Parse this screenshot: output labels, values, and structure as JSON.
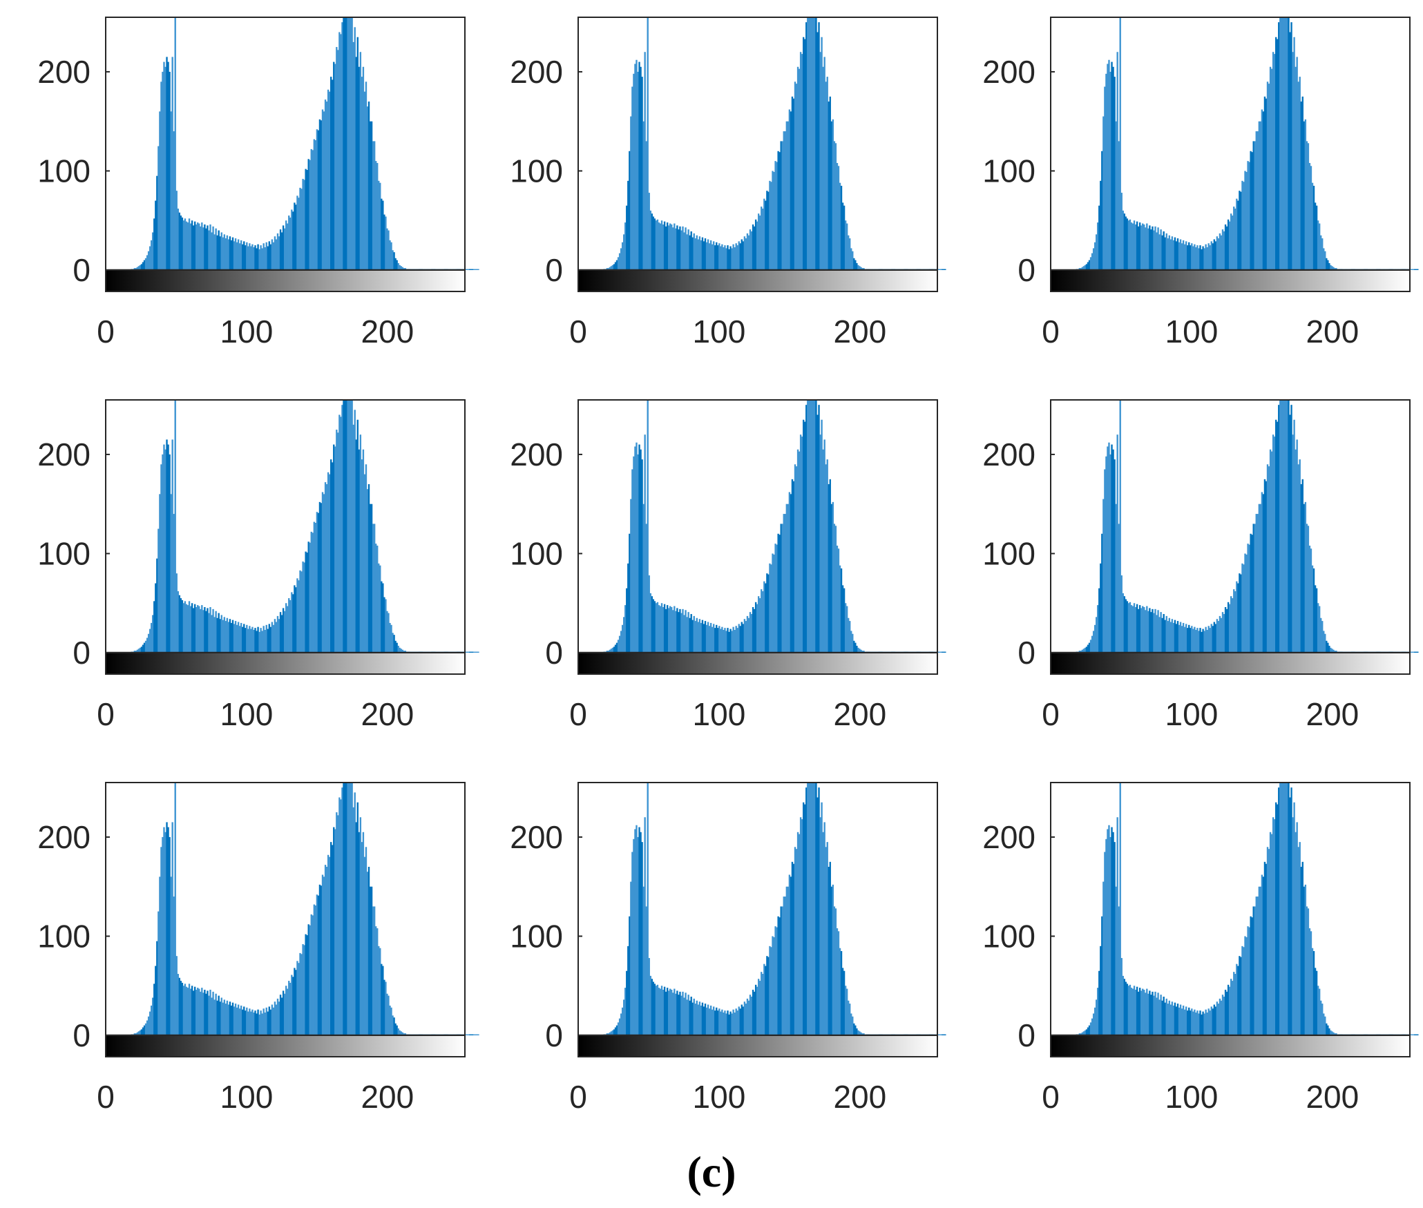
{
  "figure": {
    "caption": "(c)",
    "layout": {
      "rows": 3,
      "cols": 3
    }
  },
  "colors": {
    "bar_light": "#3d94d2",
    "bar_dark": "#0072bd",
    "axis": "#262626",
    "colorbar_start": "#000000",
    "colorbar_end": "#ffffff"
  },
  "chart_data": [
    {
      "id": 1,
      "type": "bar",
      "subtype": "histogram",
      "variant": "A",
      "title": "",
      "xlabel": "",
      "ylabel": "",
      "xlim": [
        0,
        255
      ],
      "ylim": [
        0,
        255
      ],
      "xticks": [
        0,
        100,
        200
      ],
      "xtick_labels": [
        "0",
        "100",
        "200"
      ],
      "yticks": [
        0,
        100,
        200
      ],
      "ytick_labels": [
        "0",
        "100",
        "200"
      ],
      "grid": false,
      "colorbar": "gray",
      "peaks": [
        {
          "bin": 50,
          "value": 255
        },
        {
          "bin": 172,
          "value": 255
        }
      ]
    },
    {
      "id": 2,
      "type": "bar",
      "subtype": "histogram",
      "variant": "B",
      "title": "",
      "xlabel": "",
      "ylabel": "",
      "xlim": [
        0,
        255
      ],
      "ylim": [
        0,
        255
      ],
      "xticks": [
        0,
        100,
        200
      ],
      "xtick_labels": [
        "0",
        "100",
        "200"
      ],
      "yticks": [
        0,
        100,
        200
      ],
      "ytick_labels": [
        "0",
        "100",
        "200"
      ],
      "grid": false,
      "colorbar": "gray",
      "peaks": [
        {
          "bin": 50,
          "value": 255
        },
        {
          "bin": 170,
          "value": 255
        }
      ]
    },
    {
      "id": 3,
      "type": "bar",
      "subtype": "histogram",
      "variant": "B",
      "title": "",
      "xlabel": "",
      "ylabel": "",
      "xlim": [
        0,
        255
      ],
      "ylim": [
        0,
        255
      ],
      "xticks": [
        0,
        100,
        200
      ],
      "xtick_labels": [
        "0",
        "100",
        "200"
      ],
      "yticks": [
        0,
        100,
        200
      ],
      "ytick_labels": [
        "0",
        "100",
        "200"
      ],
      "grid": false,
      "colorbar": "gray",
      "peaks": [
        {
          "bin": 50,
          "value": 255
        },
        {
          "bin": 170,
          "value": 255
        }
      ]
    },
    {
      "id": 4,
      "type": "bar",
      "subtype": "histogram",
      "variant": "A",
      "title": "",
      "xlabel": "",
      "ylabel": "",
      "xlim": [
        0,
        255
      ],
      "ylim": [
        0,
        255
      ],
      "xticks": [
        0,
        100,
        200
      ],
      "xtick_labels": [
        "0",
        "100",
        "200"
      ],
      "yticks": [
        0,
        100,
        200
      ],
      "ytick_labels": [
        "0",
        "100",
        "200"
      ],
      "grid": false,
      "colorbar": "gray",
      "peaks": [
        {
          "bin": 50,
          "value": 255
        },
        {
          "bin": 172,
          "value": 255
        }
      ]
    },
    {
      "id": 5,
      "type": "bar",
      "subtype": "histogram",
      "variant": "B",
      "title": "",
      "xlabel": "",
      "ylabel": "",
      "xlim": [
        0,
        255
      ],
      "ylim": [
        0,
        255
      ],
      "xticks": [
        0,
        100,
        200
      ],
      "xtick_labels": [
        "0",
        "100",
        "200"
      ],
      "yticks": [
        0,
        100,
        200
      ],
      "ytick_labels": [
        "0",
        "100",
        "200"
      ],
      "grid": false,
      "colorbar": "gray",
      "peaks": [
        {
          "bin": 50,
          "value": 255
        },
        {
          "bin": 170,
          "value": 255
        }
      ]
    },
    {
      "id": 6,
      "type": "bar",
      "subtype": "histogram",
      "variant": "B",
      "title": "",
      "xlabel": "",
      "ylabel": "",
      "xlim": [
        0,
        255
      ],
      "ylim": [
        0,
        255
      ],
      "xticks": [
        0,
        100,
        200
      ],
      "xtick_labels": [
        "0",
        "100",
        "200"
      ],
      "yticks": [
        0,
        100,
        200
      ],
      "ytick_labels": [
        "0",
        "100",
        "200"
      ],
      "grid": false,
      "colorbar": "gray",
      "peaks": [
        {
          "bin": 50,
          "value": 255
        },
        {
          "bin": 170,
          "value": 255
        }
      ]
    },
    {
      "id": 7,
      "type": "bar",
      "subtype": "histogram",
      "variant": "A",
      "title": "",
      "xlabel": "",
      "ylabel": "",
      "xlim": [
        0,
        255
      ],
      "ylim": [
        0,
        255
      ],
      "xticks": [
        0,
        100,
        200
      ],
      "xtick_labels": [
        "0",
        "100",
        "200"
      ],
      "yticks": [
        0,
        100,
        200
      ],
      "ytick_labels": [
        "0",
        "100",
        "200"
      ],
      "grid": false,
      "colorbar": "gray",
      "peaks": [
        {
          "bin": 50,
          "value": 255
        },
        {
          "bin": 172,
          "value": 255
        }
      ]
    },
    {
      "id": 8,
      "type": "bar",
      "subtype": "histogram",
      "variant": "B",
      "title": "",
      "xlabel": "",
      "ylabel": "",
      "xlim": [
        0,
        255
      ],
      "ylim": [
        0,
        255
      ],
      "xticks": [
        0,
        100,
        200
      ],
      "xtick_labels": [
        "0",
        "100",
        "200"
      ],
      "yticks": [
        0,
        100,
        200
      ],
      "ytick_labels": [
        "0",
        "100",
        "200"
      ],
      "grid": false,
      "colorbar": "gray",
      "peaks": [
        {
          "bin": 50,
          "value": 255
        },
        {
          "bin": 170,
          "value": 255
        }
      ]
    },
    {
      "id": 9,
      "type": "bar",
      "subtype": "histogram",
      "variant": "B",
      "title": "",
      "xlabel": "",
      "ylabel": "",
      "xlim": [
        0,
        255
      ],
      "ylim": [
        0,
        255
      ],
      "xticks": [
        0,
        100,
        200
      ],
      "xtick_labels": [
        "0",
        "100",
        "200"
      ],
      "yticks": [
        0,
        100,
        200
      ],
      "ytick_labels": [
        "0",
        "100",
        "200"
      ],
      "grid": false,
      "colorbar": "gray",
      "peaks": [
        {
          "bin": 50,
          "value": 255
        },
        {
          "bin": 170,
          "value": 255
        }
      ]
    }
  ],
  "histogram_variants": {
    "A": {
      "bins": 256,
      "values": [
        0,
        0,
        0,
        0,
        0,
        0,
        0,
        0,
        0,
        0,
        0,
        0,
        0,
        0,
        0,
        0,
        0,
        0,
        1,
        1,
        2,
        2,
        3,
        4,
        5,
        6,
        8,
        10,
        12,
        15,
        19,
        24,
        30,
        38,
        52,
        70,
        95,
        125,
        160,
        190,
        200,
        210,
        205,
        215,
        210,
        200,
        160,
        215,
        140,
        255,
        80,
        62,
        58,
        55,
        53,
        50,
        52,
        49,
        48,
        52,
        47,
        50,
        45,
        49,
        46,
        48,
        47,
        44,
        48,
        43,
        46,
        42,
        45,
        40,
        46,
        38,
        44,
        36,
        42,
        35,
        40,
        34,
        38,
        33,
        36,
        32,
        35,
        31,
        34,
        30,
        33,
        29,
        32,
        28,
        31,
        27,
        30,
        26,
        29,
        25,
        28,
        24,
        27,
        24,
        26,
        23,
        25,
        22,
        26,
        21,
        25,
        22,
        27,
        23,
        28,
        24,
        29,
        26,
        31,
        28,
        34,
        31,
        37,
        34,
        41,
        38,
        45,
        42,
        50,
        47,
        55,
        53,
        61,
        59,
        68,
        66,
        75,
        73,
        83,
        82,
        92,
        91,
        102,
        101,
        112,
        111,
        122,
        121,
        132,
        131,
        142,
        141,
        152,
        151,
        162,
        160,
        172,
        170,
        182,
        180,
        195,
        192,
        210,
        208,
        225,
        222,
        240,
        238,
        250,
        255,
        255,
        255,
        255,
        255,
        255,
        255,
        230,
        245,
        215,
        235,
        205,
        220,
        195,
        205,
        180,
        190,
        165,
        170,
        150,
        150,
        130,
        130,
        110,
        108,
        90,
        88,
        72,
        70,
        56,
        54,
        42,
        40,
        30,
        28,
        20,
        18,
        12,
        10,
        7,
        5,
        4,
        3,
        2,
        2,
        1,
        1,
        1,
        1,
        1,
        1,
        1,
        1,
        1,
        1,
        1,
        1,
        1,
        1,
        1,
        1,
        1,
        1,
        1,
        1,
        1,
        1,
        1,
        1,
        1,
        1,
        1,
        1,
        1,
        1,
        1,
        1,
        1,
        1,
        1,
        1,
        1,
        1,
        1,
        1,
        1,
        1,
        1,
        1,
        1,
        1,
        1,
        1,
        1,
        1,
        1,
        1
      ]
    },
    "B": {
      "bins": 256,
      "values": [
        0,
        0,
        0,
        0,
        0,
        0,
        0,
        0,
        0,
        0,
        0,
        0,
        0,
        0,
        0,
        0,
        0,
        0,
        1,
        1,
        2,
        2,
        3,
        4,
        5,
        6,
        8,
        10,
        13,
        17,
        22,
        28,
        36,
        48,
        65,
        90,
        120,
        155,
        185,
        198,
        208,
        212,
        200,
        210,
        205,
        195,
        150,
        220,
        130,
        255,
        78,
        60,
        57,
        54,
        52,
        50,
        51,
        48,
        47,
        50,
        46,
        49,
        44,
        48,
        45,
        47,
        46,
        43,
        47,
        42,
        45,
        41,
        44,
        40,
        44,
        38,
        43,
        36,
        41,
        35,
        39,
        33,
        37,
        32,
        35,
        31,
        34,
        30,
        33,
        29,
        32,
        28,
        31,
        27,
        30,
        26,
        29,
        25,
        28,
        25,
        27,
        24,
        26,
        23,
        25,
        22,
        25,
        21,
        24,
        22,
        26,
        23,
        27,
        25,
        29,
        27,
        31,
        29,
        34,
        32,
        37,
        35,
        41,
        39,
        46,
        44,
        51,
        49,
        57,
        55,
        64,
        62,
        72,
        70,
        80,
        79,
        90,
        89,
        100,
        99,
        110,
        109,
        120,
        119,
        130,
        130,
        140,
        140,
        150,
        150,
        162,
        160,
        175,
        173,
        190,
        188,
        205,
        203,
        220,
        218,
        235,
        233,
        250,
        255,
        255,
        255,
        255,
        255,
        255,
        255,
        240,
        250,
        220,
        235,
        205,
        215,
        190,
        195,
        170,
        175,
        150,
        152,
        130,
        128,
        108,
        105,
        88,
        85,
        68,
        65,
        50,
        47,
        35,
        32,
        22,
        19,
        12,
        10,
        7,
        5,
        4,
        3,
        2,
        2,
        1,
        1,
        1,
        1,
        1,
        1,
        1,
        1,
        1,
        1,
        1,
        1,
        1,
        1,
        1,
        1,
        1,
        1,
        1,
        1,
        1,
        1,
        1,
        1,
        1,
        1,
        1,
        1,
        1,
        1,
        1,
        1,
        1,
        1,
        1,
        1,
        1,
        1,
        1,
        1,
        1,
        1,
        1,
        1,
        1,
        1,
        1,
        1,
        1,
        1,
        1,
        1,
        1,
        1,
        1,
        1,
        1,
        1
      ]
    }
  }
}
